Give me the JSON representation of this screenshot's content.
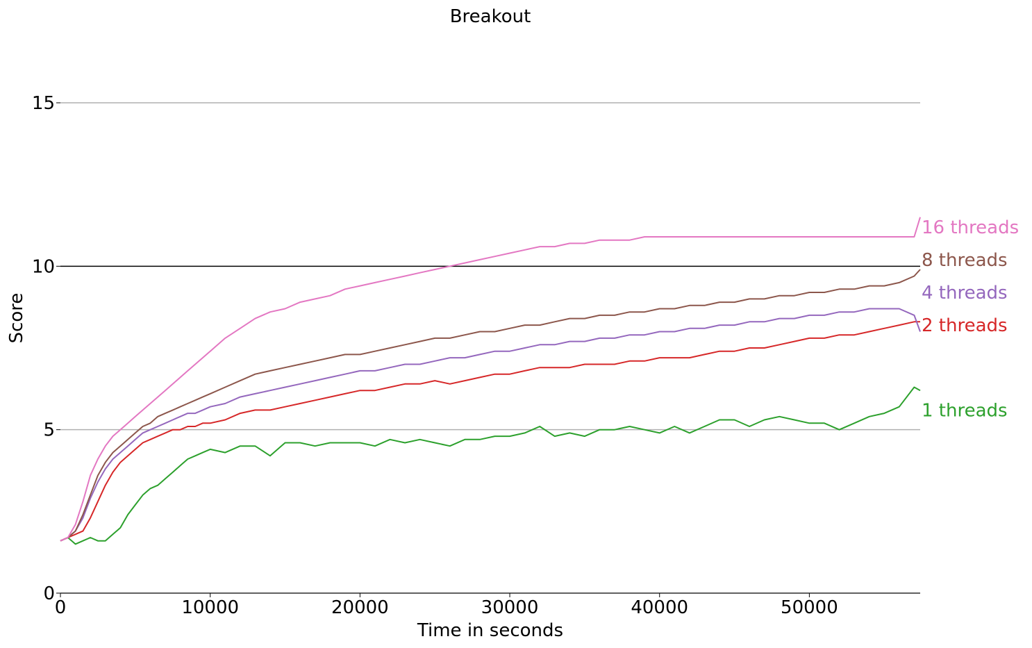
{
  "chart_data": {
    "type": "line",
    "title": "Breakout",
    "xlabel": "Time in seconds",
    "ylabel": "Score",
    "xlim": [
      0,
      57400
    ],
    "ylim": [
      0,
      15
    ],
    "xticks": [
      0,
      10000,
      20000,
      30000,
      40000,
      50000
    ],
    "xtick_labels": [
      "0",
      "10000",
      "20000",
      "30000",
      "40000",
      "50000"
    ],
    "yticks": [
      0,
      5,
      10,
      15
    ],
    "ytick_labels": [
      "0",
      "5",
      "10",
      "15"
    ],
    "horizontal_lines": [
      {
        "y": 5,
        "color": "#b0b0b0"
      },
      {
        "y": 10,
        "color": "#000000"
      },
      {
        "y": 15,
        "color": "#b0b0b0"
      }
    ],
    "grid": false,
    "legend": "right-end labels",
    "series": [
      {
        "name": "1 threads",
        "color": "#2ca02c",
        "label": "1 threads",
        "x": [
          0,
          500,
          1000,
          1500,
          2000,
          2500,
          3000,
          3500,
          4000,
          4500,
          5000,
          5500,
          6000,
          6500,
          7000,
          7500,
          8000,
          8500,
          9000,
          9500,
          10000,
          11000,
          12000,
          13000,
          14000,
          15000,
          16000,
          17000,
          18000,
          19000,
          20000,
          21000,
          22000,
          23000,
          24000,
          25000,
          26000,
          27000,
          28000,
          29000,
          30000,
          31000,
          32000,
          33000,
          34000,
          35000,
          36000,
          37000,
          38000,
          39000,
          40000,
          41000,
          42000,
          43000,
          44000,
          45000,
          46000,
          47000,
          48000,
          49000,
          50000,
          51000,
          52000,
          53000,
          54000,
          55000,
          56000,
          57000,
          57400
        ],
        "values": [
          1.6,
          1.7,
          1.5,
          1.6,
          1.7,
          1.6,
          1.6,
          1.8,
          2.0,
          2.4,
          2.7,
          3.0,
          3.2,
          3.3,
          3.5,
          3.7,
          3.9,
          4.1,
          4.2,
          4.3,
          4.4,
          4.3,
          4.5,
          4.5,
          4.2,
          4.6,
          4.6,
          4.5,
          4.6,
          4.6,
          4.6,
          4.5,
          4.7,
          4.6,
          4.7,
          4.6,
          4.5,
          4.7,
          4.7,
          4.8,
          4.8,
          4.9,
          5.1,
          4.8,
          4.9,
          4.8,
          5.0,
          5.0,
          5.1,
          5.0,
          4.9,
          5.1,
          4.9,
          5.1,
          5.3,
          5.3,
          5.1,
          5.3,
          5.4,
          5.3,
          5.2,
          5.2,
          5.0,
          5.2,
          5.4,
          5.5,
          5.7,
          6.3,
          6.2
        ]
      },
      {
        "name": "2 threads",
        "color": "#d62728",
        "label": "2 threads",
        "x": [
          0,
          500,
          1000,
          1500,
          2000,
          2500,
          3000,
          3500,
          4000,
          4500,
          5000,
          5500,
          6000,
          6500,
          7000,
          7500,
          8000,
          8500,
          9000,
          9500,
          10000,
          11000,
          12000,
          13000,
          14000,
          15000,
          16000,
          17000,
          18000,
          19000,
          20000,
          21000,
          22000,
          23000,
          24000,
          25000,
          26000,
          27000,
          28000,
          29000,
          30000,
          31000,
          32000,
          33000,
          34000,
          35000,
          36000,
          37000,
          38000,
          39000,
          40000,
          41000,
          42000,
          43000,
          44000,
          45000,
          46000,
          47000,
          48000,
          49000,
          50000,
          51000,
          52000,
          53000,
          54000,
          55000,
          56000,
          57000,
          57400
        ],
        "values": [
          1.6,
          1.7,
          1.8,
          1.9,
          2.3,
          2.8,
          3.3,
          3.7,
          4.0,
          4.2,
          4.4,
          4.6,
          4.7,
          4.8,
          4.9,
          5.0,
          5.0,
          5.1,
          5.1,
          5.2,
          5.2,
          5.3,
          5.5,
          5.6,
          5.6,
          5.7,
          5.8,
          5.9,
          6.0,
          6.1,
          6.2,
          6.2,
          6.3,
          6.4,
          6.4,
          6.5,
          6.4,
          6.5,
          6.6,
          6.7,
          6.7,
          6.8,
          6.9,
          6.9,
          6.9,
          7.0,
          7.0,
          7.0,
          7.1,
          7.1,
          7.2,
          7.2,
          7.2,
          7.3,
          7.4,
          7.4,
          7.5,
          7.5,
          7.6,
          7.7,
          7.8,
          7.8,
          7.9,
          7.9,
          8.0,
          8.1,
          8.2,
          8.3,
          8.3
        ]
      },
      {
        "name": "4 threads",
        "color": "#9467bd",
        "label": "4 threads",
        "x": [
          0,
          500,
          1000,
          1500,
          2000,
          2500,
          3000,
          3500,
          4000,
          4500,
          5000,
          5500,
          6000,
          6500,
          7000,
          7500,
          8000,
          8500,
          9000,
          9500,
          10000,
          11000,
          12000,
          13000,
          14000,
          15000,
          16000,
          17000,
          18000,
          19000,
          20000,
          21000,
          22000,
          23000,
          24000,
          25000,
          26000,
          27000,
          28000,
          29000,
          30000,
          31000,
          32000,
          33000,
          34000,
          35000,
          36000,
          37000,
          38000,
          39000,
          40000,
          41000,
          42000,
          43000,
          44000,
          45000,
          46000,
          47000,
          48000,
          49000,
          50000,
          51000,
          52000,
          53000,
          54000,
          55000,
          56000,
          57000,
          57400
        ],
        "values": [
          1.6,
          1.7,
          1.9,
          2.3,
          2.9,
          3.4,
          3.8,
          4.1,
          4.3,
          4.5,
          4.7,
          4.9,
          5.0,
          5.1,
          5.2,
          5.3,
          5.4,
          5.5,
          5.5,
          5.6,
          5.7,
          5.8,
          6.0,
          6.1,
          6.2,
          6.3,
          6.4,
          6.5,
          6.6,
          6.7,
          6.8,
          6.8,
          6.9,
          7.0,
          7.0,
          7.1,
          7.2,
          7.2,
          7.3,
          7.4,
          7.4,
          7.5,
          7.6,
          7.6,
          7.7,
          7.7,
          7.8,
          7.8,
          7.9,
          7.9,
          8.0,
          8.0,
          8.1,
          8.1,
          8.2,
          8.2,
          8.3,
          8.3,
          8.4,
          8.4,
          8.5,
          8.5,
          8.6,
          8.6,
          8.7,
          8.7,
          8.7,
          8.5,
          8.0
        ]
      },
      {
        "name": "8 threads",
        "color": "#8c564b",
        "label": "8 threads",
        "x": [
          0,
          500,
          1000,
          1500,
          2000,
          2500,
          3000,
          3500,
          4000,
          4500,
          5000,
          5500,
          6000,
          6500,
          7000,
          7500,
          8000,
          8500,
          9000,
          9500,
          10000,
          11000,
          12000,
          13000,
          14000,
          15000,
          16000,
          17000,
          18000,
          19000,
          20000,
          21000,
          22000,
          23000,
          24000,
          25000,
          26000,
          27000,
          28000,
          29000,
          30000,
          31000,
          32000,
          33000,
          34000,
          35000,
          36000,
          37000,
          38000,
          39000,
          40000,
          41000,
          42000,
          43000,
          44000,
          45000,
          46000,
          47000,
          48000,
          49000,
          50000,
          51000,
          52000,
          53000,
          54000,
          55000,
          56000,
          57000,
          57400
        ],
        "values": [
          1.6,
          1.7,
          1.9,
          2.4,
          3.0,
          3.6,
          4.0,
          4.3,
          4.5,
          4.7,
          4.9,
          5.1,
          5.2,
          5.4,
          5.5,
          5.6,
          5.7,
          5.8,
          5.9,
          6.0,
          6.1,
          6.3,
          6.5,
          6.7,
          6.8,
          6.9,
          7.0,
          7.1,
          7.2,
          7.3,
          7.3,
          7.4,
          7.5,
          7.6,
          7.7,
          7.8,
          7.8,
          7.9,
          8.0,
          8.0,
          8.1,
          8.2,
          8.2,
          8.3,
          8.4,
          8.4,
          8.5,
          8.5,
          8.6,
          8.6,
          8.7,
          8.7,
          8.8,
          8.8,
          8.9,
          8.9,
          9.0,
          9.0,
          9.1,
          9.1,
          9.2,
          9.2,
          9.3,
          9.3,
          9.4,
          9.4,
          9.5,
          9.7,
          9.9
        ]
      },
      {
        "name": "16 threads",
        "color": "#e377c2",
        "label": "16 threads",
        "x": [
          0,
          500,
          1000,
          1500,
          2000,
          2500,
          3000,
          3500,
          4000,
          4500,
          5000,
          5500,
          6000,
          6500,
          7000,
          7500,
          8000,
          8500,
          9000,
          9500,
          10000,
          11000,
          12000,
          13000,
          14000,
          15000,
          16000,
          17000,
          18000,
          19000,
          20000,
          21000,
          22000,
          23000,
          24000,
          25000,
          26000,
          27000,
          28000,
          29000,
          30000,
          31000,
          32000,
          33000,
          34000,
          35000,
          36000,
          37000,
          38000,
          39000,
          40000,
          41000,
          42000,
          43000,
          44000,
          45000,
          46000,
          47000,
          48000,
          49000,
          50000,
          51000,
          52000,
          53000,
          54000,
          55000,
          56000,
          57000,
          57400
        ],
        "values": [
          1.6,
          1.7,
          2.1,
          2.8,
          3.6,
          4.1,
          4.5,
          4.8,
          5.0,
          5.2,
          5.4,
          5.6,
          5.8,
          6.0,
          6.2,
          6.4,
          6.6,
          6.8,
          7.0,
          7.2,
          7.4,
          7.8,
          8.1,
          8.4,
          8.6,
          8.7,
          8.9,
          9.0,
          9.1,
          9.3,
          9.4,
          9.5,
          9.6,
          9.7,
          9.8,
          9.9,
          10.0,
          10.1,
          10.2,
          10.3,
          10.4,
          10.5,
          10.6,
          10.6,
          10.7,
          10.7,
          10.8,
          10.8,
          10.8,
          10.9,
          10.9,
          10.9,
          10.9,
          10.9,
          10.9,
          10.9,
          10.9,
          10.9,
          10.9,
          10.9,
          10.9,
          10.9,
          10.9,
          10.9,
          10.9,
          10.9,
          10.9,
          10.9,
          11.5
        ]
      }
    ]
  }
}
